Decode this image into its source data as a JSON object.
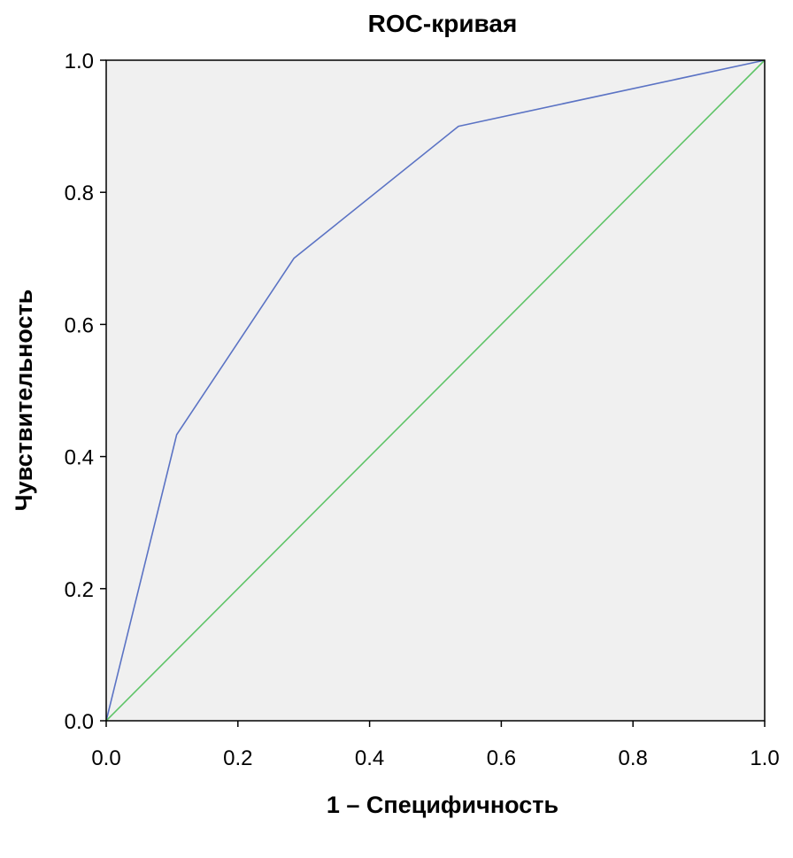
{
  "chart_data": {
    "type": "line",
    "title": "ROC-кривая",
    "xlabel": "1 – Специфичность",
    "ylabel": "Чувствительность",
    "xlim": [
      0,
      1
    ],
    "ylim": [
      0,
      1
    ],
    "x_ticks": [
      "0.0",
      "0.2",
      "0.4",
      "0.6",
      "0.8",
      "1.0"
    ],
    "y_ticks": [
      "0.0",
      "0.2",
      "0.4",
      "0.6",
      "0.8",
      "1.0"
    ],
    "series": [
      {
        "x": [
          0.0,
          0.107,
          0.285,
          0.535,
          1.0
        ],
        "y": [
          0.0,
          0.433,
          0.7,
          0.9,
          1.0
        ],
        "color": "#5b73c4"
      },
      {
        "x": [
          0.0,
          1.0
        ],
        "y": [
          0.0,
          1.0
        ],
        "color": "#5fc468"
      }
    ],
    "plot_background": "#f0f0f0",
    "grid": false,
    "legend": "none"
  }
}
